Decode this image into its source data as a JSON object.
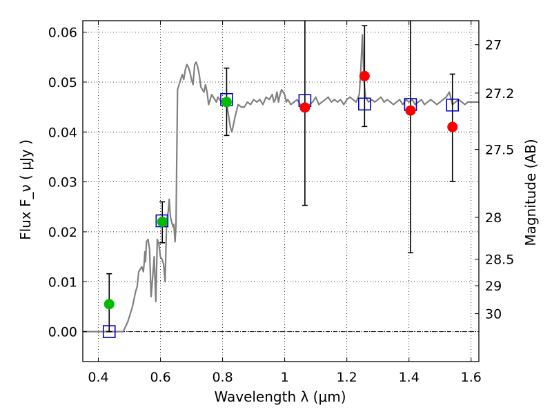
{
  "chart_data": {
    "type": "scatter",
    "xlabel": "Wavelength  λ (μm)",
    "ylabel": "Flux  F_ν  ( μJy )",
    "ylabel_right": "Magnitude (AB)",
    "xlim": [
      0.35,
      1.625
    ],
    "ylim": [
      -0.006,
      0.0623
    ],
    "grid": true,
    "x_ticks": [
      {
        "value": 0.4,
        "label": "0.4"
      },
      {
        "value": 0.6,
        "label": "0.6"
      },
      {
        "value": 0.8,
        "label": "0.8"
      },
      {
        "value": 1.0,
        "label": "1"
      },
      {
        "value": 1.2,
        "label": "1.2"
      },
      {
        "value": 1.4,
        "label": "1.4"
      },
      {
        "value": 1.6,
        "label": "1.6"
      }
    ],
    "y_ticks": [
      {
        "value": 0.0,
        "label": "0.00"
      },
      {
        "value": 0.01,
        "label": "0.01"
      },
      {
        "value": 0.02,
        "label": "0.02"
      },
      {
        "value": 0.03,
        "label": "0.03"
      },
      {
        "value": 0.04,
        "label": "0.04"
      },
      {
        "value": 0.05,
        "label": "0.05"
      },
      {
        "value": 0.06,
        "label": "0.06"
      }
    ],
    "right_ticks": [
      {
        "flux": 0.0575,
        "label": "27"
      },
      {
        "flux": 0.0478,
        "label": "27.2"
      },
      {
        "flux": 0.0365,
        "label": "27.5"
      },
      {
        "flux": 0.0229,
        "label": "28"
      },
      {
        "flux": 0.0145,
        "label": "28.5"
      },
      {
        "flux": 0.0092,
        "label": "29"
      },
      {
        "flux": 0.0036,
        "label": "30"
      }
    ],
    "zero_line": 0,
    "series": [
      {
        "kind": "line",
        "color": "#808080",
        "points": [
          [
            0.35,
            0.0
          ],
          [
            0.48,
            0.0
          ],
          [
            0.495,
            0.002
          ],
          [
            0.51,
            0.005
          ],
          [
            0.52,
            0.008
          ],
          [
            0.525,
            0.009
          ],
          [
            0.53,
            0.012
          ],
          [
            0.54,
            0.013
          ],
          [
            0.545,
            0.012
          ],
          [
            0.548,
            0.014
          ],
          [
            0.55,
            0.016
          ],
          [
            0.552,
            0.014
          ],
          [
            0.555,
            0.018
          ],
          [
            0.56,
            0.0185
          ],
          [
            0.565,
            0.0165
          ],
          [
            0.57,
            0.007
          ],
          [
            0.575,
            0.011
          ],
          [
            0.58,
            0.015
          ],
          [
            0.585,
            0.006
          ],
          [
            0.59,
            0.0185
          ],
          [
            0.595,
            0.0175
          ],
          [
            0.6,
            0.015
          ],
          [
            0.605,
            0.0145
          ],
          [
            0.61,
            0.0135
          ],
          [
            0.615,
            0.01
          ],
          [
            0.62,
            0.0225
          ],
          [
            0.625,
            0.024
          ],
          [
            0.628,
            0.0265
          ],
          [
            0.632,
            0.023
          ],
          [
            0.636,
            0.022
          ],
          [
            0.64,
            0.021
          ],
          [
            0.643,
            0.0215
          ],
          [
            0.647,
            0.018
          ],
          [
            0.65,
            0.0215
          ],
          [
            0.655,
            0.0485
          ],
          [
            0.66,
            0.0495
          ],
          [
            0.665,
            0.0505
          ],
          [
            0.67,
            0.0515
          ],
          [
            0.675,
            0.0505
          ],
          [
            0.68,
            0.0525
          ],
          [
            0.685,
            0.0535
          ],
          [
            0.69,
            0.053
          ],
          [
            0.695,
            0.052
          ],
          [
            0.7,
            0.0505
          ],
          [
            0.705,
            0.0495
          ],
          [
            0.71,
            0.0535
          ],
          [
            0.715,
            0.054
          ],
          [
            0.72,
            0.053
          ],
          [
            0.725,
            0.0515
          ],
          [
            0.73,
            0.049
          ],
          [
            0.74,
            0.048
          ],
          [
            0.745,
            0.0495
          ],
          [
            0.75,
            0.048
          ],
          [
            0.755,
            0.0455
          ],
          [
            0.76,
            0.0465
          ],
          [
            0.765,
            0.0475
          ],
          [
            0.77,
            0.047
          ],
          [
            0.775,
            0.0465
          ],
          [
            0.78,
            0.046
          ],
          [
            0.785,
            0.047
          ],
          [
            0.79,
            0.0465
          ],
          [
            0.8,
            0.046
          ],
          [
            0.81,
            0.0465
          ],
          [
            0.815,
            0.045
          ],
          [
            0.82,
            0.043
          ],
          [
            0.825,
            0.041
          ],
          [
            0.83,
            0.04
          ],
          [
            0.84,
            0.043
          ],
          [
            0.85,
            0.0455
          ],
          [
            0.86,
            0.045
          ],
          [
            0.87,
            0.045
          ],
          [
            0.88,
            0.046
          ],
          [
            0.89,
            0.0455
          ],
          [
            0.9,
            0.0465
          ],
          [
            0.91,
            0.046
          ],
          [
            0.92,
            0.0465
          ],
          [
            0.93,
            0.0455
          ],
          [
            0.94,
            0.047
          ],
          [
            0.95,
            0.0465
          ],
          [
            0.96,
            0.0475
          ],
          [
            0.965,
            0.046
          ],
          [
            0.97,
            0.0465
          ],
          [
            0.975,
            0.048
          ],
          [
            0.98,
            0.046
          ],
          [
            0.985,
            0.0475
          ],
          [
            0.99,
            0.0485
          ],
          [
            1.0,
            0.0475
          ],
          [
            1.005,
            0.046
          ],
          [
            1.01,
            0.0465
          ],
          [
            1.02,
            0.0455
          ],
          [
            1.03,
            0.046
          ],
          [
            1.04,
            0.0465
          ],
          [
            1.05,
            0.0455
          ],
          [
            1.06,
            0.0445
          ],
          [
            1.07,
            0.045
          ],
          [
            1.08,
            0.0455
          ],
          [
            1.09,
            0.046
          ],
          [
            1.1,
            0.047
          ],
          [
            1.11,
            0.0455
          ],
          [
            1.12,
            0.046
          ],
          [
            1.13,
            0.0465
          ],
          [
            1.14,
            0.047
          ],
          [
            1.15,
            0.046
          ],
          [
            1.16,
            0.0465
          ],
          [
            1.17,
            0.046
          ],
          [
            1.18,
            0.0465
          ],
          [
            1.19,
            0.0455
          ],
          [
            1.2,
            0.0465
          ],
          [
            1.21,
            0.047
          ],
          [
            1.22,
            0.0465
          ],
          [
            1.23,
            0.046
          ],
          [
            1.24,
            0.0475
          ],
          [
            1.245,
            0.0525
          ],
          [
            1.25,
            0.0595
          ],
          [
            1.255,
            0.0505
          ],
          [
            1.26,
            0.047
          ],
          [
            1.27,
            0.046
          ],
          [
            1.28,
            0.0465
          ],
          [
            1.29,
            0.046
          ],
          [
            1.3,
            0.0465
          ],
          [
            1.31,
            0.047
          ],
          [
            1.32,
            0.046
          ],
          [
            1.33,
            0.0465
          ],
          [
            1.34,
            0.046
          ],
          [
            1.35,
            0.0455
          ],
          [
            1.36,
            0.046
          ],
          [
            1.37,
            0.0465
          ],
          [
            1.38,
            0.0455
          ],
          [
            1.39,
            0.0465
          ],
          [
            1.4,
            0.046
          ],
          [
            1.41,
            0.0465
          ],
          [
            1.42,
            0.0455
          ],
          [
            1.43,
            0.046
          ],
          [
            1.44,
            0.0465
          ],
          [
            1.45,
            0.0455
          ],
          [
            1.46,
            0.046
          ],
          [
            1.47,
            0.0465
          ],
          [
            1.48,
            0.046
          ],
          [
            1.49,
            0.0455
          ],
          [
            1.5,
            0.046
          ],
          [
            1.51,
            0.0465
          ],
          [
            1.52,
            0.047
          ],
          [
            1.53,
            0.048
          ],
          [
            1.54,
            0.0455
          ],
          [
            1.55,
            0.046
          ],
          [
            1.56,
            0.0465
          ],
          [
            1.57,
            0.046
          ],
          [
            1.58,
            0.0455
          ],
          [
            1.59,
            0.046
          ],
          [
            1.6,
            0.046
          ],
          [
            1.625,
            0.046
          ]
        ]
      },
      {
        "kind": "markers",
        "marker": "open-square",
        "color": "#0000cc",
        "x": [
          0.435,
          0.605,
          0.813,
          1.065,
          1.257,
          1.405,
          1.54
        ],
        "y": [
          0.0,
          0.0222,
          0.0465,
          0.0463,
          0.0456,
          0.0455,
          0.0454
        ]
      },
      {
        "kind": "markers",
        "marker": "circle",
        "color": "#00bb00",
        "x": [
          0.435,
          0.606,
          0.813
        ],
        "y": [
          0.0055,
          0.022,
          0.046
        ],
        "err_low": [
          0.0,
          0.0178,
          0.0393
        ],
        "err_high": [
          0.0116,
          0.026,
          0.0528
        ]
      },
      {
        "kind": "markers",
        "marker": "circle",
        "color": "#ff0000",
        "x": [
          1.065,
          1.257,
          1.405,
          1.54
        ],
        "y": [
          0.0449,
          0.0512,
          0.0443,
          0.041
        ],
        "err_low": [
          0.0253,
          0.0411,
          0.0158,
          0.0301
        ],
        "err_high": [
          0.0623,
          0.0613,
          0.0623,
          0.0516
        ]
      }
    ]
  }
}
